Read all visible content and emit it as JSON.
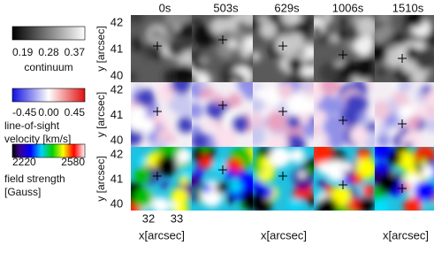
{
  "columns": [
    "0s",
    "503s",
    "629s",
    "1006s",
    "1510s"
  ],
  "rows": [
    {
      "y_ticks": [
        "42",
        "41",
        "40"
      ],
      "y_label": "y [arcsec]"
    },
    {
      "y_ticks": [
        "42",
        "41",
        "40"
      ],
      "y_label": "y [arcsec]"
    },
    {
      "y_ticks": [
        "42",
        "41",
        "40"
      ],
      "y_label": "y [arcsec]"
    }
  ],
  "x_axis": {
    "ticks": [
      "32",
      "33"
    ],
    "label": "x[arcsec]"
  },
  "colorbars": [
    {
      "ticks": [
        "0.19",
        "0.28",
        "0.37"
      ],
      "label": [
        "continuum"
      ]
    },
    {
      "ticks": [
        "-0.45",
        "0.00",
        "0.45"
      ],
      "label": [
        "line-of-sight",
        "velocity [km/s]"
      ]
    },
    {
      "ticks": [
        "2220",
        "2580"
      ],
      "label": [
        "field strength",
        "[Gauss]"
      ]
    }
  ]
}
